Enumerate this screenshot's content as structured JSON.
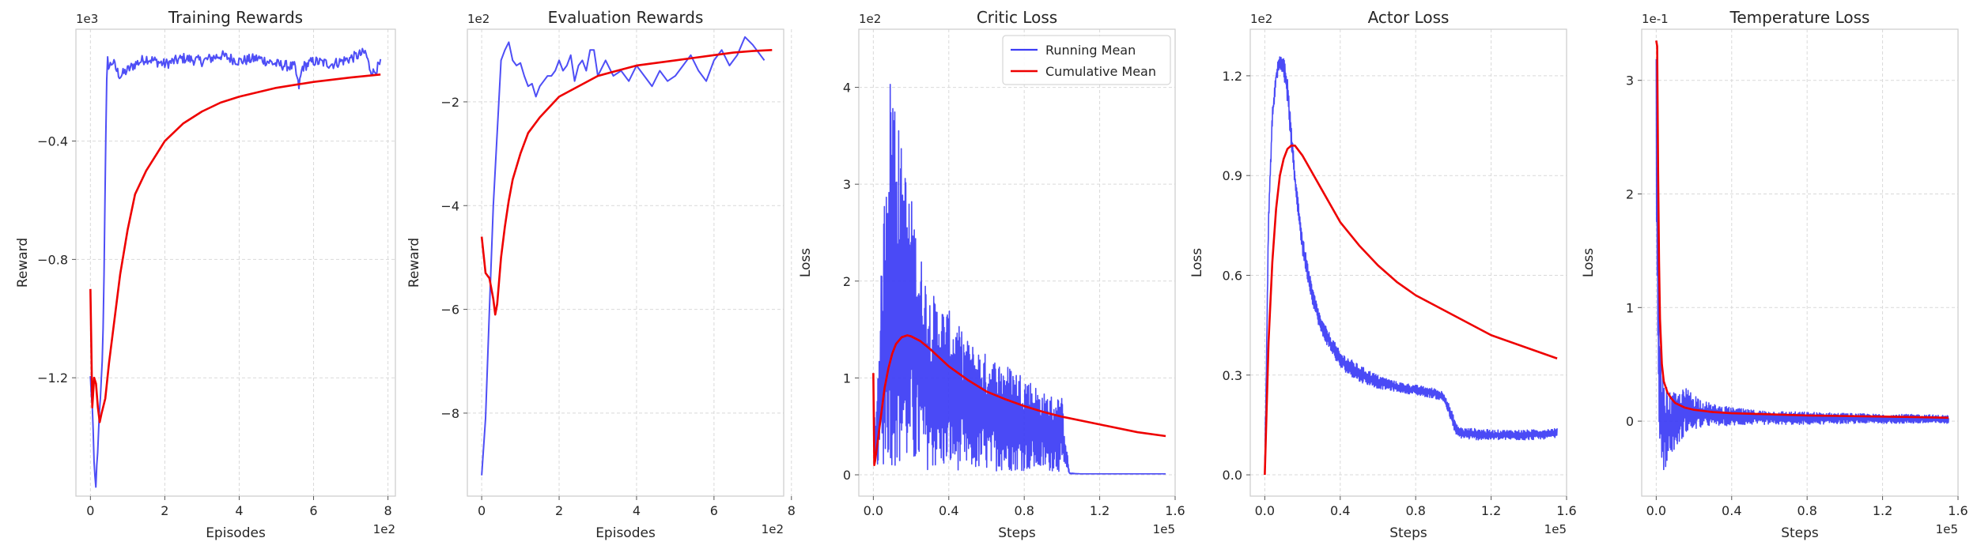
{
  "colors": {
    "running_mean": "#3b3bf5",
    "cumulative_mean": "#ee0000",
    "grid": "#d9d9d9",
    "spine": "#cccccc"
  },
  "chart_data": [
    {
      "type": "line",
      "title": "Training Rewards",
      "xlabel": "Episodes",
      "ylabel": "Reward",
      "x_multiplier": "1e2",
      "y_multiplier": "1e3",
      "xlim": [
        -0.39,
        8.2
      ],
      "ylim": [
        -1.6,
        -0.022
      ],
      "xticks": [
        0,
        2,
        4,
        6,
        8
      ],
      "xtick_labels": [
        "0",
        "2",
        "4",
        "6",
        "8"
      ],
      "yticks": [
        -1.2,
        -0.8,
        -0.4
      ],
      "ytick_labels": [
        "−1.2",
        "−0.8",
        "−0.4"
      ],
      "grid": true,
      "legend": null,
      "series": [
        {
          "key": "running_mean",
          "style": "noisy",
          "x": [
            0,
            0.05,
            0.1,
            0.14,
            0.2,
            0.25,
            0.3,
            0.35,
            0.4,
            0.45,
            0.5,
            0.6,
            0.7,
            0.8,
            1.0,
            1.2,
            1.5,
            2.0,
            2.5,
            3.0,
            3.5,
            4.0,
            4.5,
            5.0,
            5.5,
            5.6,
            5.7,
            6.0,
            6.5,
            7.0,
            7.4,
            7.5,
            7.6,
            7.8
          ],
          "y": [
            -1.2,
            -1.3,
            -1.5,
            -1.57,
            -1.45,
            -1.3,
            -1.2,
            -1.0,
            -0.5,
            -0.12,
            -0.15,
            -0.13,
            -0.16,
            -0.18,
            -0.16,
            -0.14,
            -0.12,
            -0.14,
            -0.12,
            -0.13,
            -0.11,
            -0.13,
            -0.12,
            -0.14,
            -0.15,
            -0.22,
            -0.15,
            -0.13,
            -0.14,
            -0.12,
            -0.1,
            -0.15,
            -0.17,
            -0.14
          ],
          "noise": 0.018
        },
        {
          "key": "cumulative_mean",
          "style": "smooth",
          "x": [
            0,
            0.05,
            0.1,
            0.15,
            0.2,
            0.25,
            0.3,
            0.4,
            0.5,
            0.6,
            0.8,
            1.0,
            1.2,
            1.5,
            2.0,
            2.5,
            3.0,
            3.5,
            4.0,
            4.5,
            5.0,
            6.0,
            7.0,
            7.8
          ],
          "y": [
            -0.9,
            -1.3,
            -1.2,
            -1.22,
            -1.3,
            -1.35,
            -1.32,
            -1.27,
            -1.15,
            -1.05,
            -0.85,
            -0.7,
            -0.58,
            -0.5,
            -0.4,
            -0.34,
            -0.3,
            -0.27,
            -0.25,
            -0.235,
            -0.22,
            -0.2,
            -0.185,
            -0.175
          ]
        }
      ]
    },
    {
      "type": "line",
      "title": "Evaluation Rewards",
      "xlabel": "Episodes",
      "ylabel": "Reward",
      "x_multiplier": "1e2",
      "y_multiplier": "1e2",
      "xlim": [
        -0.37,
        7.8
      ],
      "ylim": [
        -9.6,
        -0.6
      ],
      "xticks": [
        0,
        2,
        4,
        6,
        8
      ],
      "xtick_labels": [
        "0",
        "2",
        "4",
        "6",
        "8"
      ],
      "yticks": [
        -8,
        -6,
        -4,
        -2
      ],
      "ytick_labels": [
        "−8",
        "−6",
        "−4",
        "−2"
      ],
      "grid": true,
      "legend": null,
      "series": [
        {
          "key": "running_mean",
          "style": "line",
          "x": [
            0,
            0.1,
            0.2,
            0.3,
            0.4,
            0.5,
            0.6,
            0.7,
            0.8,
            0.9,
            1.0,
            1.1,
            1.2,
            1.3,
            1.4,
            1.5,
            1.6,
            1.7,
            1.8,
            1.9,
            2.0,
            2.1,
            2.2,
            2.3,
            2.4,
            2.5,
            2.6,
            2.7,
            2.8,
            2.9,
            3.0,
            3.2,
            3.4,
            3.6,
            3.8,
            4.0,
            4.2,
            4.4,
            4.6,
            4.8,
            5.0,
            5.2,
            5.4,
            5.6,
            5.8,
            6.0,
            6.2,
            6.4,
            6.6,
            6.8,
            7.0,
            7.2,
            7.3
          ],
          "y": [
            -9.2,
            -8.1,
            -6.0,
            -4.0,
            -2.6,
            -1.2,
            -1.0,
            -0.85,
            -1.2,
            -1.3,
            -1.25,
            -1.5,
            -1.7,
            -1.65,
            -1.9,
            -1.7,
            -1.6,
            -1.5,
            -1.5,
            -1.4,
            -1.2,
            -1.4,
            -1.3,
            -1.1,
            -1.6,
            -1.3,
            -1.2,
            -1.4,
            -1.0,
            -1.0,
            -1.5,
            -1.2,
            -1.5,
            -1.4,
            -1.6,
            -1.3,
            -1.5,
            -1.7,
            -1.4,
            -1.6,
            -1.5,
            -1.3,
            -1.1,
            -1.4,
            -1.6,
            -1.2,
            -1.0,
            -1.3,
            -1.1,
            -0.75,
            -0.9,
            -1.1,
            -1.2
          ]
        },
        {
          "key": "cumulative_mean",
          "style": "smooth",
          "x": [
            0,
            0.1,
            0.2,
            0.3,
            0.35,
            0.4,
            0.5,
            0.6,
            0.7,
            0.8,
            1.0,
            1.2,
            1.5,
            2.0,
            2.5,
            3.0,
            3.5,
            4.0,
            4.5,
            5.0,
            5.5,
            6.0,
            6.5,
            7.0,
            7.5
          ],
          "y": [
            -4.6,
            -5.3,
            -5.4,
            -5.8,
            -6.1,
            -5.9,
            -5.0,
            -4.4,
            -3.9,
            -3.5,
            -3.0,
            -2.6,
            -2.3,
            -1.9,
            -1.7,
            -1.5,
            -1.4,
            -1.3,
            -1.25,
            -1.2,
            -1.15,
            -1.1,
            -1.05,
            -1.02,
            -1.0
          ]
        }
      ]
    },
    {
      "type": "line",
      "title": "Critic Loss",
      "xlabel": "Steps",
      "ylabel": "Loss",
      "x_multiplier": "1e5",
      "y_multiplier": "1e2",
      "xlim": [
        -0.077,
        1.6
      ],
      "ylim": [
        -0.22,
        4.6
      ],
      "xticks": [
        0,
        0.4,
        0.8,
        1.2,
        1.6
      ],
      "xtick_labels": [
        "0.0",
        "0.4",
        "0.8",
        "1.2",
        "1.6"
      ],
      "yticks": [
        0,
        1,
        2,
        3,
        4
      ],
      "ytick_labels": [
        "0",
        "1",
        "2",
        "3",
        "4"
      ],
      "grid": true,
      "legend": {
        "position": "top-right",
        "entries": [
          {
            "key": "running_mean",
            "label": "Running Mean"
          },
          {
            "key": "cumulative_mean",
            "label": "Cumulative Mean"
          }
        ]
      },
      "series": [
        {
          "key": "running_mean",
          "style": "band",
          "x": [
            0,
            0.01,
            0.02,
            0.04,
            0.06,
            0.08,
            0.1,
            0.12,
            0.14,
            0.16,
            0.2,
            0.25,
            0.3,
            0.4,
            0.5,
            0.6,
            0.7,
            0.8,
            0.9,
            1.0,
            1.03,
            1.04,
            1.1,
            1.3,
            1.55
          ],
          "y_high": [
            1.0,
            0.5,
            0.9,
            2.0,
            3.0,
            4.0,
            4.35,
            4.0,
            3.5,
            3.3,
            2.9,
            2.3,
            1.9,
            1.7,
            1.4,
            1.25,
            1.15,
            1.05,
            0.85,
            0.8,
            0.2,
            0.02,
            0.01,
            0.01,
            0.01
          ],
          "y_low": [
            0.5,
            0.05,
            0.1,
            0.1,
            0.08,
            0.1,
            0.08,
            0.07,
            0.06,
            0.06,
            0.05,
            0.05,
            0.05,
            0.05,
            0.04,
            0.04,
            0.04,
            0.04,
            0.04,
            0.03,
            0.02,
            0.01,
            0.01,
            0.01,
            0.01
          ]
        },
        {
          "key": "cumulative_mean",
          "style": "smooth",
          "x": [
            0,
            0.005,
            0.01,
            0.02,
            0.04,
            0.06,
            0.08,
            0.1,
            0.12,
            0.15,
            0.18,
            0.2,
            0.25,
            0.3,
            0.4,
            0.5,
            0.6,
            0.7,
            0.8,
            0.9,
            1.0,
            1.2,
            1.4,
            1.55
          ],
          "y": [
            1.05,
            0.1,
            0.15,
            0.3,
            0.6,
            0.9,
            1.1,
            1.25,
            1.35,
            1.42,
            1.44,
            1.43,
            1.38,
            1.3,
            1.12,
            0.98,
            0.86,
            0.78,
            0.71,
            0.65,
            0.6,
            0.52,
            0.44,
            0.4
          ]
        }
      ]
    },
    {
      "type": "line",
      "title": "Actor Loss",
      "xlabel": "Steps",
      "ylabel": "Loss",
      "x_multiplier": "1e5",
      "y_multiplier": "1e2",
      "xlim": [
        -0.077,
        1.6
      ],
      "ylim": [
        -0.064,
        1.34
      ],
      "xticks": [
        0,
        0.4,
        0.8,
        1.2,
        1.6
      ],
      "xtick_labels": [
        "0.0",
        "0.4",
        "0.8",
        "1.2",
        "1.6"
      ],
      "yticks": [
        0,
        0.3,
        0.6,
        0.9,
        1.2
      ],
      "ytick_labels": [
        "0.0",
        "0.3",
        "0.6",
        "0.9",
        "1.2"
      ],
      "grid": true,
      "legend": null,
      "series": [
        {
          "key": "running_mean",
          "style": "band",
          "x": [
            0,
            0.01,
            0.02,
            0.04,
            0.06,
            0.08,
            0.1,
            0.12,
            0.14,
            0.16,
            0.2,
            0.25,
            0.3,
            0.4,
            0.5,
            0.6,
            0.7,
            0.8,
            0.9,
            0.95,
            1.0,
            1.02,
            1.05,
            1.1,
            1.2,
            1.3,
            1.4,
            1.55
          ],
          "y_high": [
            0.05,
            0.4,
            0.8,
            1.1,
            1.22,
            1.27,
            1.26,
            1.2,
            1.05,
            0.92,
            0.72,
            0.57,
            0.47,
            0.37,
            0.33,
            0.3,
            0.28,
            0.27,
            0.26,
            0.25,
            0.18,
            0.15,
            0.14,
            0.14,
            0.135,
            0.135,
            0.135,
            0.14
          ],
          "y_low": [
            0.0,
            0.35,
            0.75,
            1.05,
            1.18,
            1.22,
            1.2,
            1.12,
            0.98,
            0.86,
            0.66,
            0.52,
            0.42,
            0.32,
            0.28,
            0.26,
            0.25,
            0.24,
            0.23,
            0.22,
            0.14,
            0.11,
            0.11,
            0.105,
            0.105,
            0.105,
            0.105,
            0.11
          ]
        },
        {
          "key": "cumulative_mean",
          "style": "smooth",
          "x": [
            0,
            0.01,
            0.02,
            0.04,
            0.06,
            0.08,
            0.1,
            0.12,
            0.14,
            0.16,
            0.2,
            0.25,
            0.3,
            0.4,
            0.5,
            0.6,
            0.7,
            0.8,
            0.9,
            1.0,
            1.2,
            1.4,
            1.55
          ],
          "y": [
            0.0,
            0.2,
            0.4,
            0.64,
            0.8,
            0.9,
            0.95,
            0.98,
            0.99,
            0.99,
            0.96,
            0.91,
            0.86,
            0.76,
            0.69,
            0.63,
            0.58,
            0.54,
            0.51,
            0.48,
            0.42,
            0.38,
            0.35
          ]
        }
      ]
    },
    {
      "type": "line",
      "title": "Temperature Loss",
      "xlabel": "Steps",
      "ylabel": "Loss",
      "x_multiplier": "1e5",
      "y_multiplier": "1e-1",
      "xlim": [
        -0.077,
        1.6
      ],
      "ylim": [
        -0.66,
        3.45
      ],
      "xticks": [
        0,
        0.4,
        0.8,
        1.2,
        1.6
      ],
      "xtick_labels": [
        "0.0",
        "0.4",
        "0.8",
        "1.2",
        "1.6"
      ],
      "yticks": [
        0,
        1,
        2,
        3
      ],
      "ytick_labels": [
        "0",
        "1",
        "2",
        "3"
      ],
      "grid": true,
      "legend": null,
      "series": [
        {
          "key": "running_mean",
          "style": "band",
          "x": [
            0,
            0.005,
            0.01,
            0.02,
            0.03,
            0.04,
            0.06,
            0.08,
            0.1,
            0.12,
            0.15,
            0.2,
            0.25,
            0.3,
            0.4,
            0.5,
            0.6,
            0.8,
            1.0,
            1.2,
            1.4,
            1.55
          ],
          "y_high": [
            3.3,
            2.5,
            1.6,
            0.8,
            0.5,
            0.3,
            0.3,
            0.25,
            0.25,
            0.25,
            0.3,
            0.25,
            0.18,
            0.15,
            0.12,
            0.1,
            0.09,
            0.08,
            0.07,
            0.06,
            0.06,
            0.05
          ],
          "y_low": [
            2.0,
            1.2,
            0.2,
            -0.3,
            -0.35,
            -0.45,
            -0.35,
            -0.3,
            -0.25,
            -0.2,
            -0.12,
            -0.08,
            -0.05,
            -0.04,
            -0.04,
            -0.03,
            -0.03,
            -0.03,
            -0.02,
            -0.02,
            -0.02,
            -0.02
          ]
        },
        {
          "key": "cumulative_mean",
          "style": "smooth",
          "x": [
            0,
            0.005,
            0.01,
            0.015,
            0.02,
            0.03,
            0.04,
            0.06,
            0.08,
            0.1,
            0.15,
            0.2,
            0.3,
            0.4,
            0.6,
            0.8,
            1.0,
            1.2,
            1.4,
            1.55
          ],
          "y": [
            3.35,
            3.3,
            2.2,
            1.4,
            0.9,
            0.5,
            0.35,
            0.25,
            0.2,
            0.16,
            0.12,
            0.1,
            0.08,
            0.07,
            0.06,
            0.05,
            0.045,
            0.04,
            0.035,
            0.03
          ]
        }
      ]
    }
  ]
}
